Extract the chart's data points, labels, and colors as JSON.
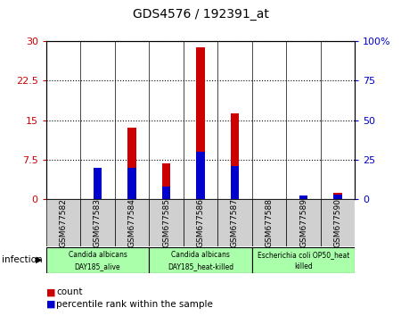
{
  "title": "GDS4576 / 192391_at",
  "samples": [
    "GSM677582",
    "GSM677583",
    "GSM677584",
    "GSM677585",
    "GSM677586",
    "GSM677587",
    "GSM677588",
    "GSM677589",
    "GSM677590"
  ],
  "count_values": [
    0.0,
    0.8,
    13.5,
    6.8,
    28.8,
    16.2,
    0.0,
    0.0,
    1.2
  ],
  "percentile_values": [
    0.0,
    6.0,
    6.0,
    2.4,
    9.0,
    6.3,
    0.0,
    0.6,
    0.9
  ],
  "groups": [
    {
      "label": "Candida albicans\nDAY185_alive",
      "start": 0,
      "end": 3,
      "color": "#aaffaa"
    },
    {
      "label": "Candida albicans\nDAY185_heat-killed",
      "start": 3,
      "end": 6,
      "color": "#aaffaa"
    },
    {
      "label": "Escherichia coli OP50_heat\nkilled",
      "start": 6,
      "end": 9,
      "color": "#aaffaa"
    }
  ],
  "left_ylim": [
    0,
    30
  ],
  "right_ylim": [
    0,
    100
  ],
  "left_yticks": [
    0,
    7.5,
    15,
    22.5,
    30
  ],
  "left_yticklabels": [
    "0",
    "7.5",
    "15",
    "22.5",
    "30"
  ],
  "right_yticks": [
    0,
    25,
    50,
    75,
    100
  ],
  "right_yticklabels": [
    "0",
    "25",
    "50",
    "75",
    "100%"
  ],
  "count_color": "#cc0000",
  "percentile_color": "#0000cc",
  "xlabel_group": "infection",
  "legend_count": "count",
  "legend_percentile": "percentile rank within the sample",
  "plot_bg": "#e8e8e8",
  "bar_width": 0.25
}
